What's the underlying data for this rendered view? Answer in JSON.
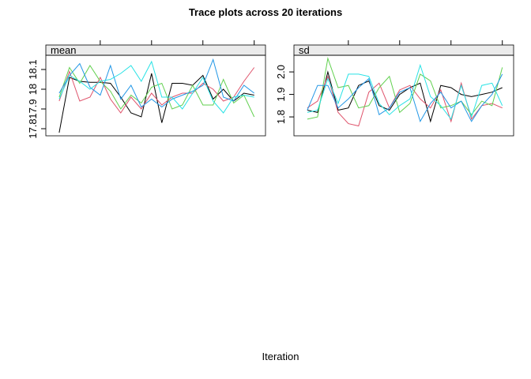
{
  "title": "Trace plots across 20 iterations",
  "x_label": "Iteration",
  "chart_data": [
    {
      "type": "line",
      "strip": "mean",
      "x": [
        1,
        2,
        3,
        4,
        5,
        6,
        7,
        8,
        9,
        10,
        11,
        12,
        13,
        14,
        15,
        16,
        17,
        18,
        19,
        20
      ],
      "xlim": [
        -0.3,
        21.1
      ],
      "xticks": [
        5,
        10,
        15,
        20
      ],
      "ylim": [
        17.764,
        18.172
      ],
      "yticks": [
        17.8,
        17.9,
        18.0,
        18.1
      ],
      "series": [
        {
          "color": "#000000",
          "values": [
            17.78,
            18.06,
            18.04,
            18.035,
            18.035,
            18.03,
            17.96,
            17.88,
            17.86,
            18.08,
            17.83,
            18.03,
            18.03,
            18.02,
            18.07,
            17.95,
            18.0,
            17.94,
            17.98,
            17.97
          ]
        },
        {
          "color": "#DF536B",
          "values": [
            17.94,
            18.09,
            17.94,
            17.96,
            18.06,
            17.95,
            17.88,
            17.96,
            17.9,
            17.98,
            17.92,
            17.96,
            17.98,
            17.98,
            18.03,
            18.0,
            17.94,
            17.96,
            18.04,
            18.11
          ]
        },
        {
          "color": "#61D04F",
          "values": [
            17.96,
            18.11,
            18.03,
            18.12,
            18.04,
            17.99,
            17.9,
            17.97,
            17.93,
            18.01,
            18.03,
            17.9,
            17.92,
            18.02,
            17.92,
            17.92,
            18.05,
            17.93,
            17.97,
            17.86
          ]
        },
        {
          "color": "#2297E6",
          "values": [
            17.98,
            18.07,
            18.13,
            18.01,
            17.97,
            18.12,
            17.95,
            18.02,
            17.91,
            17.95,
            17.91,
            17.95,
            17.97,
            17.99,
            18.02,
            18.15,
            17.96,
            17.94,
            18.02,
            17.98
          ]
        },
        {
          "color": "#28E2E5",
          "values": [
            17.95,
            18.07,
            18.04,
            18.0,
            18.04,
            18.05,
            18.08,
            18.12,
            18.04,
            18.14,
            17.96,
            17.96,
            17.9,
            17.98,
            18.06,
            17.94,
            17.88,
            17.96,
            17.97,
            17.96
          ]
        }
      ]
    },
    {
      "type": "line",
      "strip": "sd",
      "x": [
        1,
        2,
        3,
        4,
        5,
        6,
        7,
        8,
        9,
        10,
        11,
        12,
        13,
        14,
        15,
        16,
        17,
        18,
        19,
        20
      ],
      "xlim": [
        -0.3,
        21.1
      ],
      "xticks": [
        5,
        10,
        15,
        20
      ],
      "ylim": [
        1.716,
        2.074
      ],
      "yticks": [
        1.8,
        1.9,
        {
          "value": 2.0,
          "label": "2.0"
        }
      ],
      "series": [
        {
          "color": "#000000",
          "values": [
            1.83,
            1.82,
            2.0,
            1.83,
            1.84,
            1.94,
            1.96,
            1.85,
            1.83,
            1.9,
            1.93,
            1.95,
            1.78,
            1.94,
            1.93,
            1.9,
            1.89,
            1.9,
            1.91,
            1.93
          ]
        },
        {
          "color": "#DF536B",
          "values": [
            1.84,
            1.87,
            1.98,
            1.82,
            1.77,
            1.76,
            1.91,
            1.95,
            1.84,
            1.92,
            1.94,
            1.88,
            1.84,
            1.92,
            1.78,
            1.95,
            1.79,
            1.85,
            1.86,
            1.84
          ]
        },
        {
          "color": "#61D04F",
          "values": [
            1.79,
            1.8,
            2.06,
            1.93,
            1.94,
            1.84,
            1.85,
            1.93,
            1.98,
            1.82,
            1.86,
            1.99,
            1.96,
            1.84,
            1.85,
            1.87,
            1.81,
            1.87,
            1.85,
            2.02
          ]
        },
        {
          "color": "#2297E6",
          "values": [
            1.83,
            1.94,
            1.94,
            1.84,
            1.88,
            1.93,
            1.97,
            1.81,
            1.84,
            1.91,
            1.93,
            1.78,
            1.86,
            1.91,
            1.84,
            1.87,
            1.78,
            1.85,
            1.9,
            1.99
          ]
        },
        {
          "color": "#28E2E5",
          "values": [
            1.82,
            1.83,
            1.97,
            1.86,
            1.99,
            1.99,
            1.98,
            1.86,
            1.81,
            1.85,
            1.88,
            2.03,
            1.89,
            1.85,
            1.79,
            1.94,
            1.8,
            1.94,
            1.95,
            1.85
          ]
        }
      ]
    }
  ]
}
